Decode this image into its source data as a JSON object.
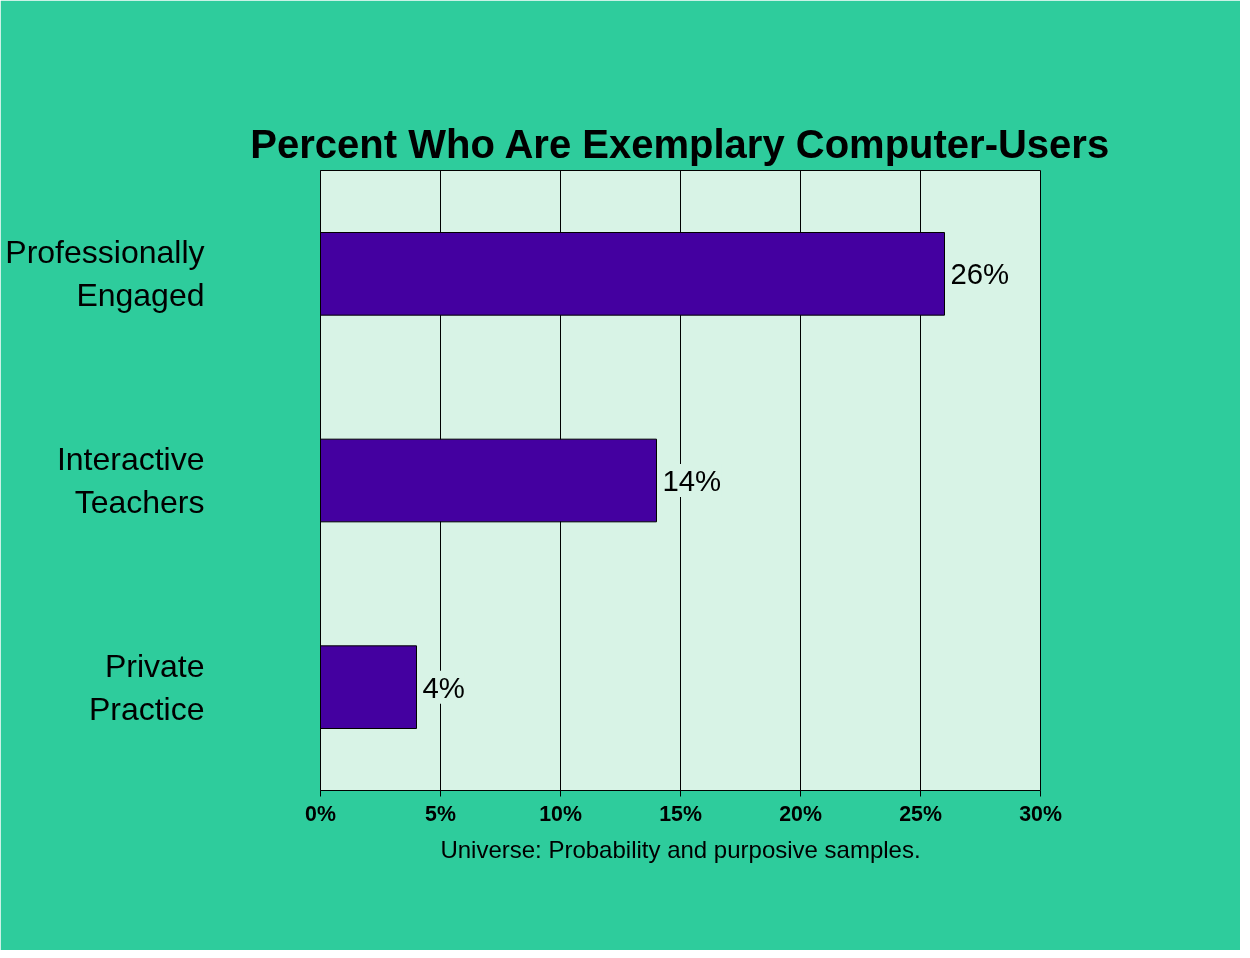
{
  "chart_data": {
    "type": "bar",
    "orientation": "horizontal",
    "title": "Percent Who Are Exemplary Computer-Users",
    "categories": [
      "Professionally Engaged",
      "Interactive Teachers",
      "Private Practice"
    ],
    "values": [
      26,
      14,
      4
    ],
    "color": "#4400a0",
    "value_labels": [
      "26%",
      "14%",
      "4%"
    ],
    "xlim": [
      0,
      30
    ],
    "xticks": [
      {
        "value": 0,
        "label": "0%"
      },
      {
        "value": 5,
        "label": "5%"
      },
      {
        "value": 10,
        "label": "10%"
      },
      {
        "value": 15,
        "label": "15%"
      },
      {
        "value": 20,
        "label": "20%"
      },
      {
        "value": 25,
        "label": "25%"
      },
      {
        "value": 30,
        "label": "30%"
      }
    ],
    "grid": "x",
    "annotations": [
      "Universe: Probability and purposive samples."
    ]
  }
}
